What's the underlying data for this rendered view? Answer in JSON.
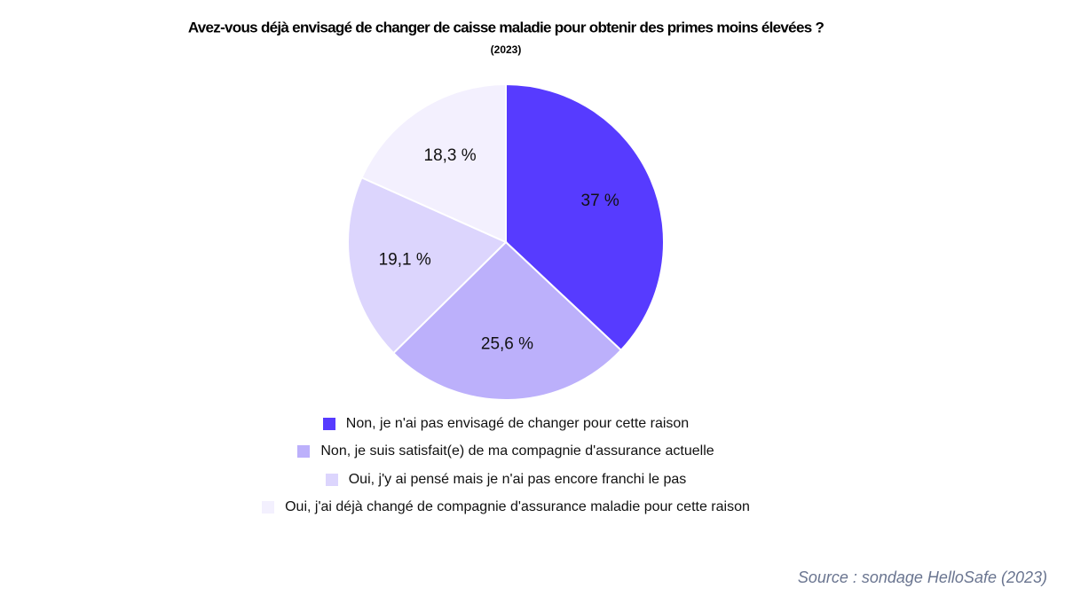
{
  "chart_data": {
    "type": "pie",
    "title": "Avez-vous déjà envisagé de changer de caisse maladie pour obtenir des primes moins élevées ?",
    "subtitle": "(2023)",
    "categories": [
      "Non, je n'ai pas envisagé de changer pour cette raison",
      "Non, je suis satisfait(e) de ma compagnie d'assurance actuelle",
      "Oui, j'y ai pensé mais je n'ai pas encore franchi le pas",
      "Oui, j'ai déjà changé de compagnie d'assurance maladie pour cette raison"
    ],
    "values": [
      37,
      25.6,
      19.1,
      18.3
    ],
    "value_labels": [
      "37 %",
      "25,6 %",
      "19,1 %",
      "18,3 %"
    ],
    "colors": [
      "#573bff",
      "#bcb0fb",
      "#dcd5fd",
      "#f3f0fe"
    ],
    "source": "Source : sondage HelloSafe (2023)"
  }
}
